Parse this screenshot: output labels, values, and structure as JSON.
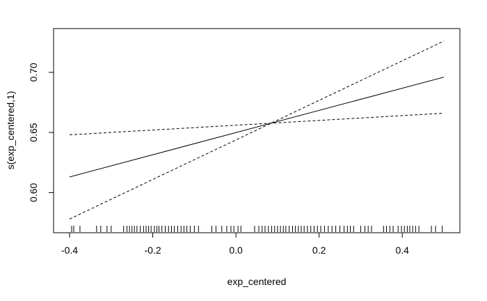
{
  "chart_data": {
    "type": "line",
    "title": "",
    "xlabel": "exp_centered",
    "ylabel": "s(exp_centered,1)",
    "xlim": [
      -0.4,
      0.5
    ],
    "ylim": [
      0.573,
      0.73
    ],
    "x_ticks": [
      -0.4,
      -0.2,
      0.0,
      0.2,
      0.4
    ],
    "x_tick_labels": [
      "-0.4",
      "-0.2",
      "0.0",
      "0.2",
      "0.4"
    ],
    "y_ticks": [
      0.6,
      0.65,
      0.7
    ],
    "y_tick_labels": [
      "0.60",
      "0.65",
      "0.70"
    ],
    "grid": false,
    "legend": "none",
    "series": [
      {
        "style": "solid",
        "x": [
          -0.4,
          0.5
        ],
        "y": [
          0.613,
          0.696
        ]
      },
      {
        "style": "dashed",
        "x": [
          -0.4,
          0.5
        ],
        "y": [
          0.578,
          0.726
        ]
      },
      {
        "style": "dashed",
        "x": [
          -0.4,
          0.5
        ],
        "y": [
          0.648,
          0.666
        ]
      }
    ],
    "rug": [
      -0.395,
      -0.39,
      -0.375,
      -0.335,
      -0.325,
      -0.31,
      -0.3,
      -0.27,
      -0.262,
      -0.256,
      -0.25,
      -0.244,
      -0.238,
      -0.23,
      -0.222,
      -0.216,
      -0.21,
      -0.204,
      -0.196,
      -0.19,
      -0.185,
      -0.178,
      -0.17,
      -0.162,
      -0.155,
      -0.148,
      -0.14,
      -0.132,
      -0.125,
      -0.118,
      -0.11,
      -0.1,
      -0.09,
      -0.058,
      -0.048,
      -0.034,
      -0.022,
      -0.012,
      -0.005,
      0.005,
      0.012,
      0.045,
      0.055,
      0.063,
      0.07,
      0.078,
      0.086,
      0.093,
      0.1,
      0.107,
      0.114,
      0.12,
      0.128,
      0.136,
      0.143,
      0.15,
      0.157,
      0.164,
      0.172,
      0.18,
      0.188,
      0.196,
      0.204,
      0.213,
      0.222,
      0.231,
      0.24,
      0.25,
      0.26,
      0.268,
      0.275,
      0.283,
      0.3,
      0.31,
      0.318,
      0.326,
      0.355,
      0.362,
      0.37,
      0.378,
      0.39,
      0.398,
      0.405,
      0.412,
      0.418,
      0.425,
      0.432,
      0.44,
      0.47,
      0.48,
      0.496
    ],
    "colors": {
      "line": "#000000",
      "background": "#ffffff"
    }
  }
}
